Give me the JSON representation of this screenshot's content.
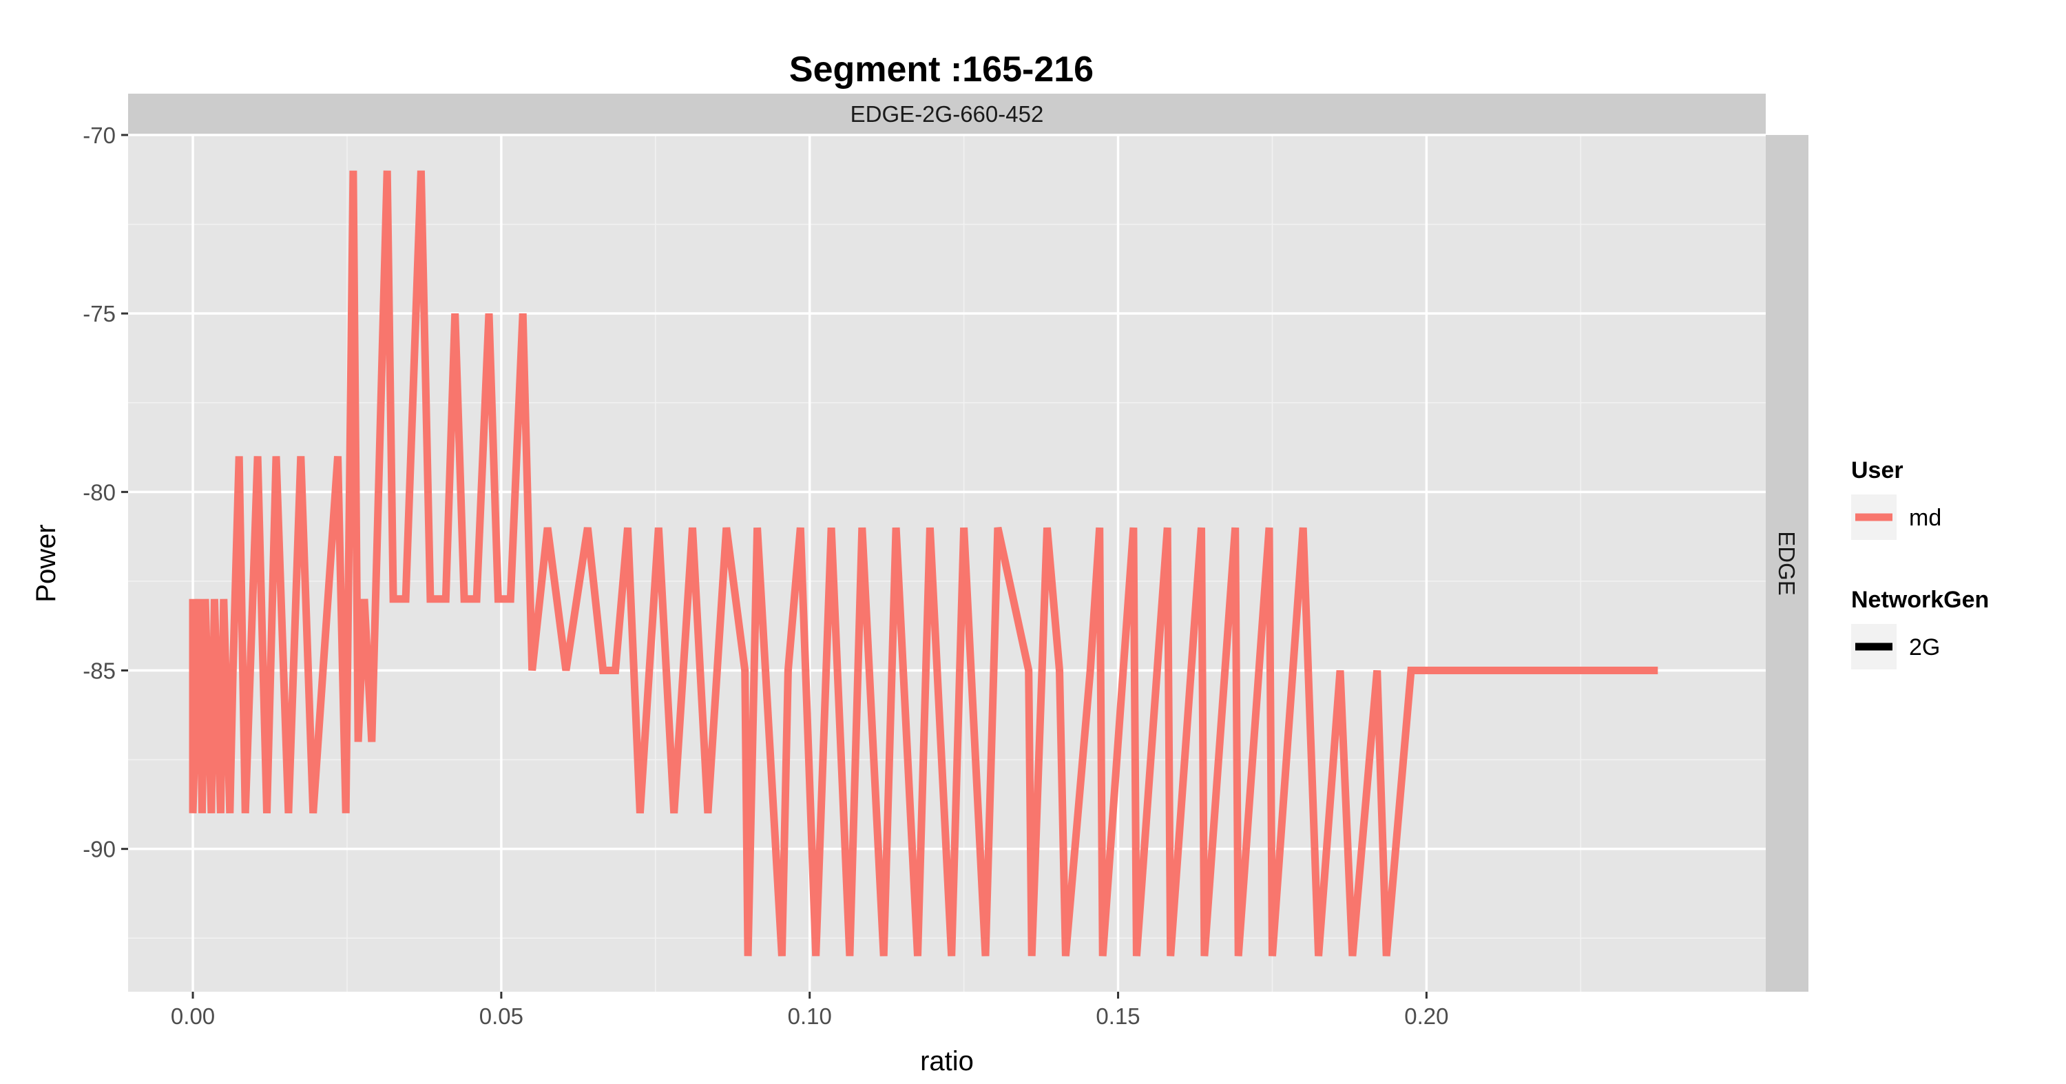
{
  "chart_data": {
    "type": "line",
    "title": "Segment :165-216",
    "xlabel": "ratio",
    "ylabel": "Power",
    "xlim": [
      -0.0105,
      0.255
    ],
    "ylim": [
      -94,
      -70
    ],
    "x_ticks": [
      0.0,
      0.05,
      0.1,
      0.15,
      0.2
    ],
    "x_tick_labels": [
      "0.00",
      "0.05",
      "0.10",
      "0.15",
      "0.20"
    ],
    "y_ticks": [
      -70,
      -75,
      -80,
      -85,
      -90
    ],
    "y_tick_labels": [
      "-70",
      "-75",
      "-80",
      "-85",
      "-90"
    ],
    "grid": true,
    "facet_top_label": "EDGE-2G-660-452",
    "facet_right_label": "EDGE",
    "legend": {
      "position": "right",
      "groups": [
        {
          "title": "User",
          "entries": [
            {
              "label": "md",
              "color": "#F8766D",
              "kind": "color"
            }
          ]
        },
        {
          "title": "NetworkGen",
          "entries": [
            {
              "label": "2G",
              "color": "#000000",
              "kind": "linetype"
            }
          ]
        }
      ]
    },
    "series": [
      {
        "name": "md",
        "color": "#F8766D",
        "points": [
          [
            0.0,
            -83
          ],
          [
            0.0,
            -89
          ],
          [
            0.001,
            -83
          ],
          [
            0.0015,
            -89
          ],
          [
            0.002,
            -83
          ],
          [
            0.003,
            -89
          ],
          [
            0.0035,
            -83
          ],
          [
            0.0045,
            -89
          ],
          [
            0.005,
            -83
          ],
          [
            0.006,
            -89
          ],
          [
            0.0065,
            -85
          ],
          [
            0.0075,
            -79
          ],
          [
            0.0085,
            -89
          ],
          [
            0.0105,
            -79
          ],
          [
            0.012,
            -89
          ],
          [
            0.0135,
            -79
          ],
          [
            0.0155,
            -89
          ],
          [
            0.0175,
            -79
          ],
          [
            0.0195,
            -89
          ],
          [
            0.0235,
            -79
          ],
          [
            0.0248,
            -89
          ],
          [
            0.026,
            -71
          ],
          [
            0.0268,
            -87
          ],
          [
            0.0278,
            -83
          ],
          [
            0.029,
            -87
          ],
          [
            0.0315,
            -71
          ],
          [
            0.0325,
            -83
          ],
          [
            0.0345,
            -83
          ],
          [
            0.037,
            -71
          ],
          [
            0.0385,
            -83
          ],
          [
            0.041,
            -83
          ],
          [
            0.0425,
            -75
          ],
          [
            0.044,
            -83
          ],
          [
            0.046,
            -83
          ],
          [
            0.048,
            -75
          ],
          [
            0.0495,
            -83
          ],
          [
            0.0515,
            -83
          ],
          [
            0.0535,
            -75
          ],
          [
            0.055,
            -85
          ],
          [
            0.0575,
            -81
          ],
          [
            0.0605,
            -85
          ],
          [
            0.064,
            -81
          ],
          [
            0.0665,
            -85
          ],
          [
            0.0685,
            -85
          ],
          [
            0.0705,
            -81
          ],
          [
            0.0725,
            -89
          ],
          [
            0.0755,
            -81
          ],
          [
            0.078,
            -89
          ],
          [
            0.081,
            -81
          ],
          [
            0.0835,
            -89
          ],
          [
            0.0865,
            -81
          ],
          [
            0.0895,
            -85
          ],
          [
            0.09,
            -93
          ],
          [
            0.0915,
            -81
          ],
          [
            0.0955,
            -93
          ],
          [
            0.0965,
            -85
          ],
          [
            0.0985,
            -81
          ],
          [
            0.101,
            -93
          ],
          [
            0.1035,
            -81
          ],
          [
            0.1065,
            -93
          ],
          [
            0.1085,
            -81
          ],
          [
            0.112,
            -93
          ],
          [
            0.114,
            -81
          ],
          [
            0.1175,
            -93
          ],
          [
            0.1195,
            -81
          ],
          [
            0.123,
            -93
          ],
          [
            0.125,
            -81
          ],
          [
            0.1285,
            -93
          ],
          [
            0.1305,
            -81
          ],
          [
            0.1355,
            -85
          ],
          [
            0.136,
            -93
          ],
          [
            0.1385,
            -81
          ],
          [
            0.1405,
            -85
          ],
          [
            0.1415,
            -93
          ],
          [
            0.1455,
            -85
          ],
          [
            0.147,
            -81
          ],
          [
            0.1475,
            -93
          ],
          [
            0.1525,
            -81
          ],
          [
            0.153,
            -93
          ],
          [
            0.158,
            -81
          ],
          [
            0.1585,
            -93
          ],
          [
            0.1635,
            -81
          ],
          [
            0.164,
            -93
          ],
          [
            0.169,
            -81
          ],
          [
            0.1695,
            -93
          ],
          [
            0.1745,
            -81
          ],
          [
            0.175,
            -93
          ],
          [
            0.18,
            -81
          ],
          [
            0.1825,
            -93
          ],
          [
            0.186,
            -85
          ],
          [
            0.188,
            -93
          ],
          [
            0.192,
            -85
          ],
          [
            0.1935,
            -93
          ],
          [
            0.1975,
            -85
          ],
          [
            0.2375,
            -85
          ]
        ]
      }
    ]
  }
}
